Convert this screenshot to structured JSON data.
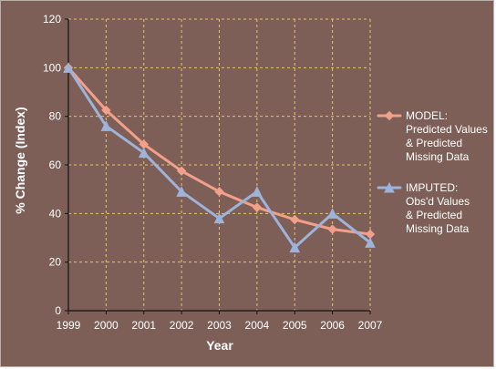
{
  "chart_data": {
    "type": "line",
    "xlabel": "Year",
    "ylabel": "% Change (Index)",
    "ylim": [
      0,
      120
    ],
    "ytick_step": 20,
    "x": [
      "1999",
      "2000",
      "2001",
      "2002",
      "2003",
      "2004",
      "2005",
      "2006",
      "2007"
    ],
    "grid": true,
    "legend_position": "right",
    "colors": {
      "background": "#7d5f58",
      "grid": "#e6c36b",
      "axis": "#111111",
      "model": "#f3a08b",
      "imputed": "#9eb3d9"
    },
    "series": [
      {
        "name": "MODEL: Predicted Values & Predicted Missing Data",
        "legend_lines": [
          "MODEL:",
          "Predicted Values",
          "& Predicted",
          "Missing Data"
        ],
        "marker": "diamond",
        "color": "#f3a08b",
        "values": [
          100,
          82.5,
          68.5,
          57.5,
          49,
          42.5,
          37.5,
          33.5,
          31.5
        ]
      },
      {
        "name": "IMPUTED: Obs'd Values & Predicted Missing Data",
        "legend_lines": [
          "IMPUTED:",
          "Obs'd Values",
          "& Predicted",
          "Missing Data"
        ],
        "marker": "triangle",
        "color": "#9eb3d9",
        "values": [
          100,
          76,
          65,
          49,
          38,
          49,
          26,
          40,
          28
        ]
      }
    ]
  }
}
